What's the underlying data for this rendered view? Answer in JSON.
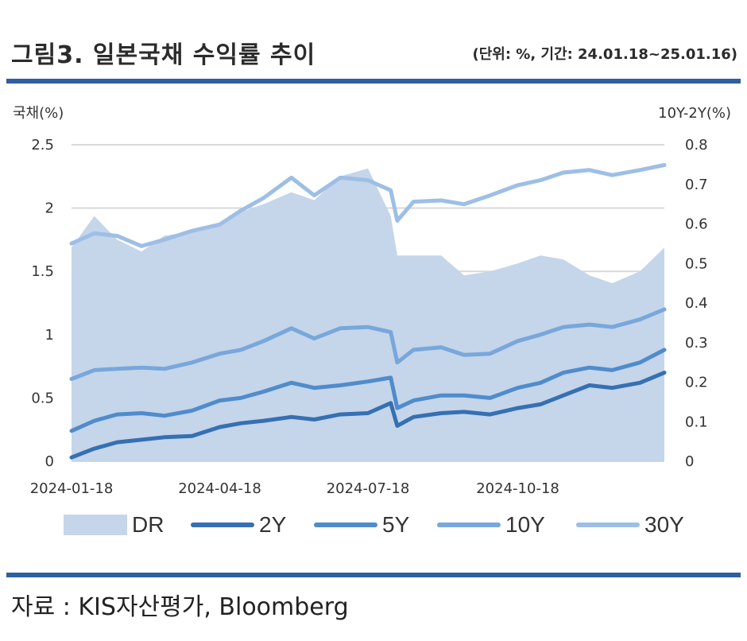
{
  "header": {
    "title": "그림3. 일본국채 수익률 추이",
    "subtitle": "(단위: %, 기간: 24.01.18~25.01.16)"
  },
  "source": "자료 : KIS자산평가, Bloomberg",
  "colors": {
    "rule": "#2e5f9e",
    "dr": "#c5d5ea",
    "y2": "#3570b2",
    "y5": "#4f8ccc",
    "y10": "#78a7db",
    "y30": "#9dbfe6",
    "grid": "#d9d9d9"
  },
  "chart_data": {
    "type": "line",
    "title": "",
    "ylabel": "국채(%)",
    "y2label": "10Y-2Y(%)",
    "ylim": [
      0,
      2.5
    ],
    "y2lim": [
      0,
      0.8
    ],
    "yticks": [
      "0",
      "0.5",
      "1",
      "1.5",
      "2",
      "2.5"
    ],
    "y2ticks": [
      "0",
      "0.1",
      "0.2",
      "0.3",
      "0.4",
      "0.5",
      "0.6",
      "0.7",
      "0.8"
    ],
    "xticks": [
      "2024-01-18",
      "2024-04-18",
      "2024-07-18",
      "2024-10-18"
    ],
    "grid": true,
    "legend": "bottom",
    "x": [
      "2024-01-18",
      "2024-02-01",
      "2024-02-15",
      "2024-03-01",
      "2024-03-15",
      "2024-04-01",
      "2024-04-18",
      "2024-05-01",
      "2024-05-15",
      "2024-06-01",
      "2024-06-15",
      "2024-07-01",
      "2024-07-18",
      "2024-08-01",
      "2024-08-05",
      "2024-08-15",
      "2024-09-01",
      "2024-09-15",
      "2024-10-01",
      "2024-10-18",
      "2024-11-01",
      "2024-11-15",
      "2024-12-01",
      "2024-12-15",
      "2025-01-01",
      "2025-01-16"
    ],
    "series": [
      {
        "name": "DR",
        "axis": "right",
        "type": "area",
        "values": [
          0.54,
          0.62,
          0.56,
          0.53,
          0.57,
          0.58,
          0.6,
          0.63,
          0.65,
          0.68,
          0.66,
          0.72,
          0.74,
          0.62,
          0.52,
          0.52,
          0.52,
          0.47,
          0.48,
          0.5,
          0.52,
          0.51,
          0.47,
          0.45,
          0.48,
          0.54
        ]
      },
      {
        "name": "2Y",
        "axis": "left",
        "type": "line",
        "values": [
          0.03,
          0.1,
          0.15,
          0.17,
          0.19,
          0.2,
          0.27,
          0.3,
          0.32,
          0.35,
          0.33,
          0.37,
          0.38,
          0.46,
          0.28,
          0.35,
          0.38,
          0.39,
          0.37,
          0.42,
          0.45,
          0.52,
          0.6,
          0.58,
          0.62,
          0.7
        ]
      },
      {
        "name": "5Y",
        "axis": "left",
        "type": "line",
        "values": [
          0.24,
          0.32,
          0.37,
          0.38,
          0.36,
          0.4,
          0.48,
          0.5,
          0.55,
          0.62,
          0.58,
          0.6,
          0.63,
          0.66,
          0.42,
          0.48,
          0.52,
          0.52,
          0.5,
          0.58,
          0.62,
          0.7,
          0.74,
          0.72,
          0.78,
          0.88
        ]
      },
      {
        "name": "10Y",
        "axis": "left",
        "type": "line",
        "values": [
          0.65,
          0.72,
          0.73,
          0.74,
          0.73,
          0.78,
          0.85,
          0.88,
          0.95,
          1.05,
          0.97,
          1.05,
          1.06,
          1.02,
          0.78,
          0.88,
          0.9,
          0.84,
          0.85,
          0.95,
          1.0,
          1.06,
          1.08,
          1.06,
          1.12,
          1.2
        ]
      },
      {
        "name": "30Y",
        "axis": "left",
        "type": "line",
        "values": [
          1.72,
          1.8,
          1.78,
          1.7,
          1.75,
          1.82,
          1.87,
          1.98,
          2.08,
          2.24,
          2.1,
          2.24,
          2.22,
          2.14,
          1.9,
          2.05,
          2.06,
          2.03,
          2.1,
          2.18,
          2.22,
          2.28,
          2.3,
          2.26,
          2.3,
          2.34
        ]
      }
    ]
  }
}
